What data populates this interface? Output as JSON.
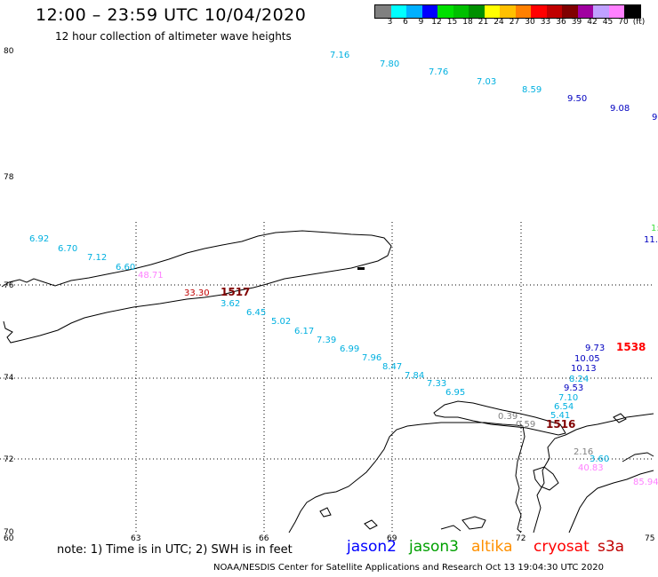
{
  "header": {
    "title": "12:00 – 23:59 UTC 10/04/2020",
    "subtitle": "12 hour collection of altimeter wave heights"
  },
  "colorbar": {
    "colors": [
      "#808080",
      "#00ffff",
      "#00b0ff",
      "#0000ff",
      "#00e000",
      "#00c000",
      "#009000",
      "#ffff00",
      "#ffc000",
      "#ff8000",
      "#ff0000",
      "#c00000",
      "#800000",
      "#a000a0",
      "#c0a0ff",
      "#ff80ff",
      "#000000"
    ],
    "labels": [
      "3",
      "6",
      "9",
      "12",
      "15",
      "18",
      "21",
      "24",
      "27",
      "30",
      "33",
      "36",
      "39",
      "42",
      "45",
      "70",
      "(ft)"
    ]
  },
  "axes": {
    "y_labels": [
      "80",
      "78",
      "76",
      "74",
      "72",
      "70"
    ],
    "x_labels": [
      "60",
      "63",
      "66",
      "69",
      "72",
      "75"
    ]
  },
  "readings": [
    {
      "text": "7.16",
      "color": "#00b0e0"
    },
    {
      "text": "7.80",
      "color": "#00b0e0"
    },
    {
      "text": "7.76",
      "color": "#00b0e0"
    },
    {
      "text": "7.03",
      "color": "#00b0e0"
    },
    {
      "text": "8.59",
      "color": "#00b0e0"
    },
    {
      "text": "9.50",
      "color": "#0000c0"
    },
    {
      "text": "9.08",
      "color": "#0000c0"
    },
    {
      "text": "9",
      "color": "#0000c0"
    },
    {
      "text": "1:",
      "color": "#40e040"
    },
    {
      "text": "11.",
      "color": "#0000c0"
    },
    {
      "text": "6.92",
      "color": "#00b0e0"
    },
    {
      "text": "6.70",
      "color": "#00b0e0"
    },
    {
      "text": "7.12",
      "color": "#00b0e0"
    },
    {
      "text": "6.60",
      "color": "#00b0e0"
    },
    {
      "text": "48.71",
      "color": "#ff80ff"
    },
    {
      "text": "33.30",
      "color": "#c00000"
    },
    {
      "text": "3.62",
      "color": "#00b0e0"
    },
    {
      "text": "6.45",
      "color": "#00b0e0"
    },
    {
      "text": "5.02",
      "color": "#00b0e0"
    },
    {
      "text": "6.17",
      "color": "#00b0e0"
    },
    {
      "text": "7.39",
      "color": "#00b0e0"
    },
    {
      "text": "6.99",
      "color": "#00b0e0"
    },
    {
      "text": "7.96",
      "color": "#00b0e0"
    },
    {
      "text": "8.47",
      "color": "#00b0e0"
    },
    {
      "text": "7.84",
      "color": "#00b0e0"
    },
    {
      "text": "7.33",
      "color": "#00b0e0"
    },
    {
      "text": "6.95",
      "color": "#00b0e0"
    },
    {
      "text": "9.73",
      "color": "#0000c0"
    },
    {
      "text": "10.05",
      "color": "#0000c0"
    },
    {
      "text": "10.13",
      "color": "#0000c0"
    },
    {
      "text": "8.24",
      "color": "#00b0e0"
    },
    {
      "text": "9.53",
      "color": "#0000c0"
    },
    {
      "text": "7.10",
      "color": "#00b0e0"
    },
    {
      "text": "6.54",
      "color": "#00b0e0"
    },
    {
      "text": "5.41",
      "color": "#00b0e0"
    },
    {
      "text": "0.39",
      "color": "#808080"
    },
    {
      "text": "0.59",
      "color": "#808080"
    },
    {
      "text": "2.16",
      "color": "#808080"
    },
    {
      "text": "3.60",
      "color": "#00b0e0"
    },
    {
      "text": "40.83",
      "color": "#ff80ff"
    },
    {
      "text": "85.94",
      "color": "#ff80ff"
    }
  ],
  "time_labels": [
    {
      "text": "1517",
      "color": "#800000"
    },
    {
      "text": "1538",
      "color": "#ff0000"
    },
    {
      "text": "1516",
      "color": "#800000"
    }
  ],
  "note": "note:  1) Time is in UTC;  2) SWH is in feet",
  "legend": [
    {
      "text": "jason2",
      "color": "#0000ff"
    },
    {
      "text": "jason3",
      "color": "#00a000"
    },
    {
      "text": "altika",
      "color": "#ff9000"
    },
    {
      "text": "cryosat",
      "color": "#ff0000"
    },
    {
      "text": "s3a",
      "color": "#c00000"
    }
  ],
  "footer": "NOAA/NESDIS Center for Satellite Applications and Research     Oct 13 19:04:30 UTC 2020"
}
